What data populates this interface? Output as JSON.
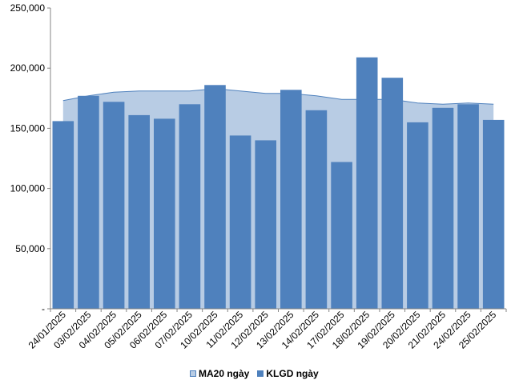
{
  "chart_data": {
    "type": "bar",
    "title": "",
    "xlabel": "",
    "ylabel": "",
    "ylim": [
      0,
      250000
    ],
    "y_ticks": [
      {
        "value": 0,
        "label": "-"
      },
      {
        "value": 50000,
        "label": "50,000"
      },
      {
        "value": 100000,
        "label": "100,000"
      },
      {
        "value": 150000,
        "label": "150,000"
      },
      {
        "value": 200000,
        "label": "200,000"
      },
      {
        "value": 250000,
        "label": "250,000"
      }
    ],
    "categories": [
      "24/01/2025",
      "03/02/2025",
      "04/02/2025",
      "05/02/2025",
      "06/02/2025",
      "07/02/2025",
      "10/02/2025",
      "11/02/2025",
      "12/02/2025",
      "13/02/2025",
      "14/02/2025",
      "17/02/2025",
      "18/02/2025",
      "19/02/2025",
      "20/02/2025",
      "21/02/2025",
      "24/02/2025",
      "25/02/2025"
    ],
    "series": [
      {
        "name": "MA20 ngày",
        "type": "area",
        "color": "#b8cce4",
        "line_color": "#4f81bd",
        "values": [
          173000,
          177000,
          180000,
          181000,
          181000,
          181000,
          183000,
          181000,
          179000,
          179000,
          177000,
          174000,
          174000,
          174000,
          171000,
          170000,
          171000,
          170000
        ]
      },
      {
        "name": "KLGD ngày",
        "type": "bar",
        "color": "#4f81bd",
        "values": [
          156000,
          177000,
          172000,
          161000,
          158000,
          170000,
          186000,
          144000,
          140000,
          182000,
          165000,
          122000,
          209000,
          192000,
          155000,
          167000,
          170000,
          157000
        ]
      }
    ],
    "legend_position": "bottom",
    "grid": false
  }
}
